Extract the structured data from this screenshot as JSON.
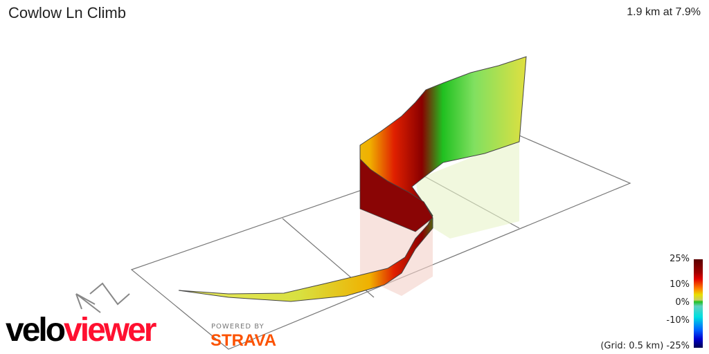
{
  "header": {
    "title": "Cowlow Ln Climb",
    "summary": "1.9 km at 7.9%"
  },
  "legend": {
    "labels": [
      "25%",
      "10%",
      "0%",
      "-10%",
      "-25%"
    ],
    "grid_note": "(Grid: 0.5 km)"
  },
  "branding": {
    "logo_part1": "velo",
    "logo_part2": "viewer",
    "powered_by": "POWERED BY",
    "strava": "STRAVA"
  },
  "colors": {
    "accent_red": "#ff1030",
    "strava_orange": "#fc5200"
  }
}
